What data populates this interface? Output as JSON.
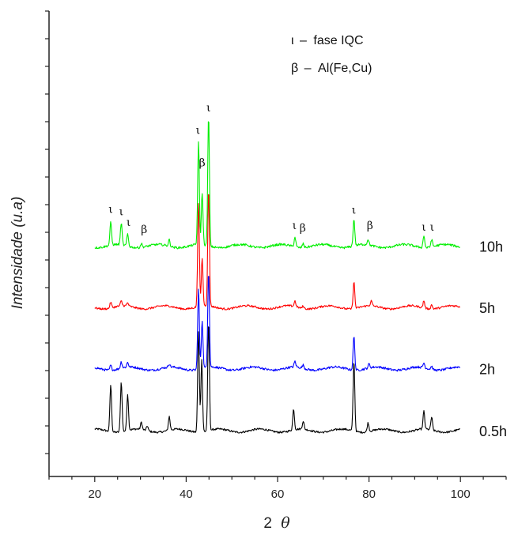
{
  "chart_data": {
    "type": "line",
    "title": "",
    "xlabel_main": "2",
    "xlabel_symbol": "θ",
    "ylabel": "Intensidade (u.a)",
    "xlim": [
      10,
      110
    ],
    "xticks": [
      "20",
      "40",
      "60",
      "80",
      "100"
    ],
    "xtick_values": [
      20,
      40,
      60,
      80,
      100
    ],
    "yticks_hidden": true,
    "grid": false,
    "legend": {
      "placement": "top-right",
      "entries": [
        {
          "symbol": "ι",
          "dash": "–",
          "text": "fase IQC"
        },
        {
          "symbol": "β",
          "dash": "–",
          "text": "Al(Fe,Cu)"
        }
      ]
    },
    "series": [
      {
        "name": "0.5h",
        "color": "#000000",
        "baseline": 0.0,
        "noise": 0.012,
        "peaks": [
          [
            23.5,
            0.58
          ],
          [
            25.8,
            0.62
          ],
          [
            27.2,
            0.45
          ],
          [
            30.2,
            0.09
          ],
          [
            31.5,
            0.06
          ],
          [
            36.3,
            0.17
          ],
          [
            42.7,
            1.25
          ],
          [
            43.4,
            0.9
          ],
          [
            44.9,
            1.35
          ],
          [
            63.5,
            0.26
          ],
          [
            65.6,
            0.1
          ],
          [
            76.7,
            0.88
          ],
          [
            79.8,
            0.11
          ],
          [
            92.0,
            0.22
          ],
          [
            93.7,
            0.16
          ]
        ]
      },
      {
        "name": "2h",
        "color": "#0000ff",
        "baseline": 0.77,
        "noise": 0.014,
        "peaks": [
          [
            23.5,
            0.06
          ],
          [
            25.8,
            0.08
          ],
          [
            27.2,
            0.06
          ],
          [
            36.3,
            0.04
          ],
          [
            42.7,
            1.0
          ],
          [
            43.5,
            0.6
          ],
          [
            44.9,
            1.2
          ],
          [
            63.8,
            0.07
          ],
          [
            65.6,
            0.04
          ],
          [
            76.7,
            0.42
          ],
          [
            80.0,
            0.05
          ],
          [
            92.0,
            0.06
          ],
          [
            93.7,
            0.04
          ]
        ]
      },
      {
        "name": "5h",
        "color": "#ff0000",
        "baseline": 1.53,
        "noise": 0.012,
        "peaks": [
          [
            23.5,
            0.07
          ],
          [
            25.8,
            0.06
          ],
          [
            27.2,
            0.04
          ],
          [
            42.7,
            1.3
          ],
          [
            43.5,
            0.6
          ],
          [
            44.9,
            1.45
          ],
          [
            63.8,
            0.07
          ],
          [
            65.6,
            0.03
          ],
          [
            76.7,
            0.33
          ],
          [
            80.5,
            0.06
          ],
          [
            92.0,
            0.09
          ],
          [
            93.7,
            0.05
          ]
        ]
      },
      {
        "name": "10h",
        "color": "#00ee00",
        "baseline": 2.29,
        "noise": 0.014,
        "peaks": [
          [
            23.5,
            0.28
          ],
          [
            25.8,
            0.27
          ],
          [
            27.2,
            0.15
          ],
          [
            30.2,
            0.05
          ],
          [
            36.3,
            0.08
          ],
          [
            42.7,
            1.27
          ],
          [
            43.5,
            0.65
          ],
          [
            44.9,
            1.62
          ],
          [
            63.8,
            0.12
          ],
          [
            65.6,
            0.05
          ],
          [
            76.7,
            0.33
          ],
          [
            79.8,
            0.07
          ],
          [
            92.0,
            0.15
          ],
          [
            93.7,
            0.09
          ]
        ]
      }
    ],
    "peak_labels": [
      {
        "x": 23.5,
        "y": 2.7,
        "text": "ι"
      },
      {
        "x": 25.8,
        "y": 2.67,
        "text": "ι"
      },
      {
        "x": 27.4,
        "y": 2.54,
        "text": "ι"
      },
      {
        "x": 30.8,
        "y": 2.45,
        "text": "β"
      },
      {
        "x": 42.6,
        "y": 3.68,
        "text": "ι"
      },
      {
        "x": 44.9,
        "y": 3.96,
        "text": "ι"
      },
      {
        "x": 43.5,
        "y": 3.28,
        "text": "β"
      },
      {
        "x": 63.7,
        "y": 2.5,
        "text": "ι"
      },
      {
        "x": 65.5,
        "y": 2.47,
        "text": "β"
      },
      {
        "x": 76.7,
        "y": 2.69,
        "text": "ι"
      },
      {
        "x": 80.2,
        "y": 2.5,
        "text": "β"
      },
      {
        "x": 92.0,
        "y": 2.48,
        "text": "ι"
      },
      {
        "x": 93.8,
        "y": 2.48,
        "text": "ι"
      }
    ]
  }
}
